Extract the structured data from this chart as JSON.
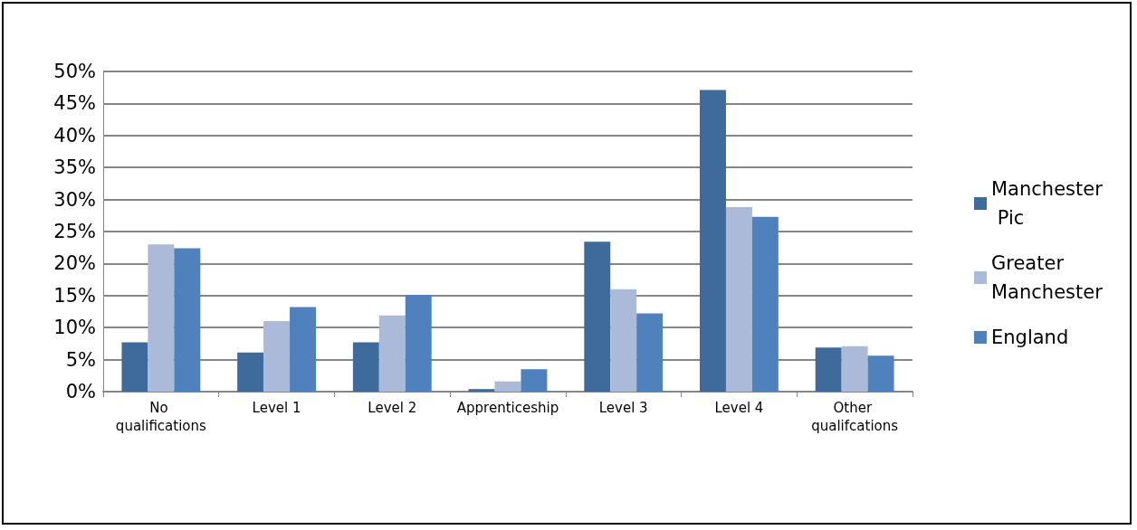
{
  "chart_data": {
    "type": "bar",
    "categories": [
      "No qualifications",
      "Level 1",
      "Level 2",
      "Apprenticeship",
      "Level 3",
      "Level 4",
      "Other qualifcations"
    ],
    "series": [
      {
        "name": "Manchester Pic",
        "color": "#3f6a9c",
        "values": [
          7.7,
          6.1,
          7.7,
          0.4,
          23.4,
          47.1,
          6.9
        ]
      },
      {
        "name": "Greater Manchester",
        "color": "#abbad8",
        "values": [
          23.0,
          11.0,
          11.9,
          1.6,
          16.0,
          28.8,
          7.1
        ]
      },
      {
        "name": "England",
        "color": "#4f81bd",
        "values": [
          22.4,
          13.2,
          15.1,
          3.5,
          12.2,
          27.3,
          5.6
        ]
      }
    ],
    "ylim": [
      0,
      50
    ],
    "yticks": [
      {
        "value": 0,
        "label": "0%"
      },
      {
        "value": 5,
        "label": "5%"
      },
      {
        "value": 10,
        "label": "10%"
      },
      {
        "value": 15,
        "label": "15%"
      },
      {
        "value": 20,
        "label": "20%"
      },
      {
        "value": 25,
        "label": "25%"
      },
      {
        "value": 30,
        "label": "30%"
      },
      {
        "value": 35,
        "label": "35%"
      },
      {
        "value": 40,
        "label": "40%"
      },
      {
        "value": 45,
        "label": "45%"
      },
      {
        "value": 50,
        "label": "50%"
      }
    ],
    "grid": "y",
    "legend": "right"
  }
}
